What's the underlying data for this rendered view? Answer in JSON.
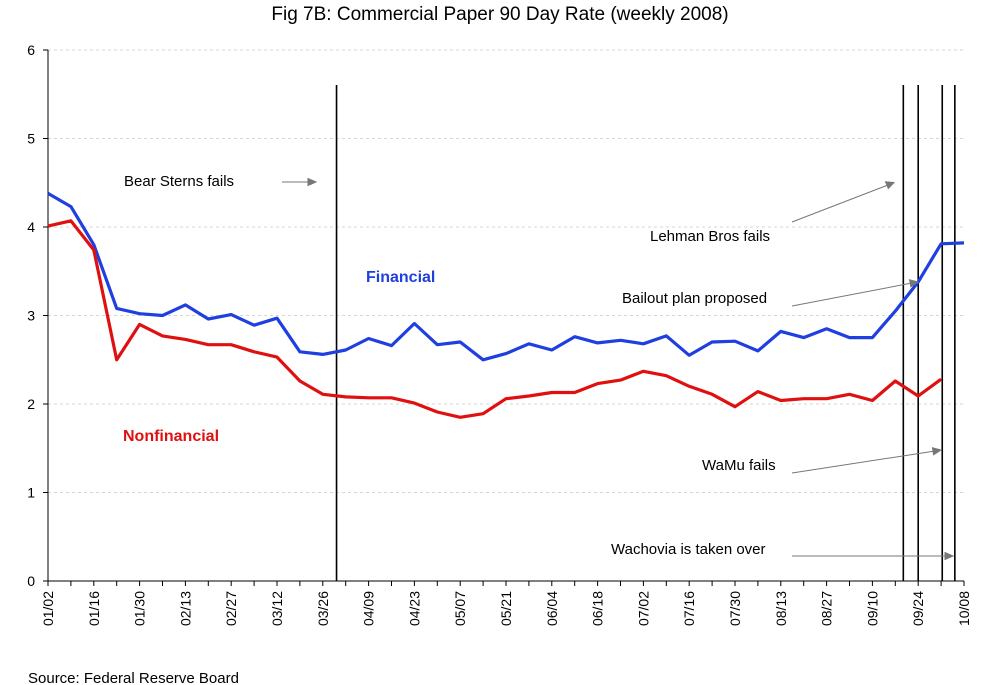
{
  "chart_data": {
    "type": "line",
    "title": "Fig 7B: Commercial Paper 90 Day Rate (weekly 2008)",
    "source": "Source: Federal Reserve Board",
    "ylim": [
      0,
      6
    ],
    "yticks": [
      "0",
      "1",
      "2",
      "3",
      "4",
      "5",
      "6"
    ],
    "grid": "horizontal",
    "x": [
      "01/02",
      "01/09",
      "01/16",
      "01/23",
      "01/30",
      "02/06",
      "02/13",
      "02/20",
      "02/27",
      "03/05",
      "03/12",
      "03/19",
      "03/26",
      "04/02",
      "04/09",
      "04/16",
      "04/23",
      "04/30",
      "05/07",
      "05/14",
      "05/21",
      "05/28",
      "06/04",
      "06/11",
      "06/18",
      "06/25",
      "07/02",
      "07/09",
      "07/16",
      "07/23",
      "07/30",
      "08/06",
      "08/13",
      "08/20",
      "08/27",
      "09/03",
      "09/10",
      "09/17",
      "09/24",
      "10/01",
      "10/08"
    ],
    "xtick_labels": [
      "01/02",
      "01/16",
      "01/30",
      "02/13",
      "02/27",
      "03/12",
      "03/26",
      "04/09",
      "04/23",
      "05/07",
      "05/21",
      "06/04",
      "06/18",
      "07/02",
      "07/16",
      "07/30",
      "08/13",
      "08/27",
      "09/10",
      "09/24",
      "10/08"
    ],
    "series": [
      {
        "name": "Financial",
        "color": "#1f3fe0",
        "values": [
          4.38,
          4.23,
          3.8,
          3.08,
          3.02,
          3.0,
          3.12,
          2.96,
          3.01,
          2.89,
          2.97,
          2.59,
          2.56,
          2.61,
          2.74,
          2.66,
          2.91,
          2.67,
          2.7,
          2.5,
          2.57,
          2.68,
          2.61,
          2.76,
          2.69,
          2.72,
          2.68,
          2.77,
          2.55,
          2.7,
          2.71,
          2.6,
          2.82,
          2.75,
          2.85,
          2.75,
          2.75,
          3.05,
          3.38,
          3.81,
          3.82
        ]
      },
      {
        "name": "Nonfinancial",
        "color": "#e01010",
        "values": [
          4.01,
          4.07,
          3.74,
          2.5,
          2.9,
          2.77,
          2.73,
          2.67,
          2.67,
          2.59,
          2.53,
          2.26,
          2.11,
          2.08,
          2.07,
          2.07,
          2.01,
          1.91,
          1.85,
          1.89,
          2.06,
          2.09,
          2.13,
          2.13,
          2.23,
          2.27,
          2.37,
          2.32,
          2.2,
          2.11,
          1.97,
          2.14,
          2.04,
          2.06,
          2.06,
          2.11,
          2.04,
          2.26,
          2.09,
          2.28,
          null
        ]
      }
    ],
    "events": [
      {
        "label": "Bear Sterns fails",
        "x_index": 12.6
      },
      {
        "label": "Lehman Bros fails",
        "x_index": 37.35
      },
      {
        "label": "Bailout plan proposed",
        "x_index": 38.0
      },
      {
        "label": "WaMu fails",
        "x_index": 39.05
      },
      {
        "label": "Wachovia is taken over",
        "x_index": 39.6
      }
    ]
  }
}
